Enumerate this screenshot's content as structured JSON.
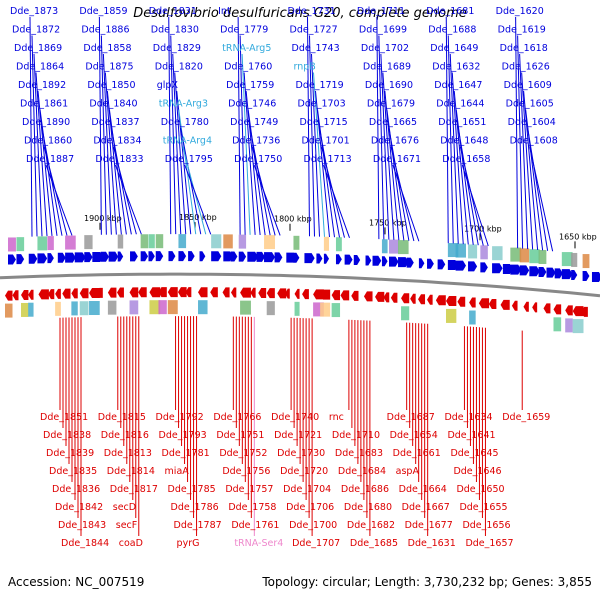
{
  "title": "Desulfovibrio desulfuricans G20, complete genome",
  "accession": "Accession: NC_007519",
  "summary": "Topology: circular; Length: 3,730,232 bp; Genes: 3,855",
  "colors": {
    "forward": "#0000dd",
    "reverse": "#dd0000",
    "rna": "#33aadd",
    "trna_reverse": "#ee88cc",
    "backbone": "#888888",
    "ticks": "#228822"
  },
  "ticks": [
    "1900 kbp",
    "1850 kbp",
    "1800 kbp",
    "1750 kbp",
    "1700 kbp",
    "1650 kbp"
  ],
  "forward_labels": [
    "Dde_1873",
    "Dde_1872",
    "Dde_1869",
    "Dde_1864",
    "Dde_1892",
    "Dde_1861",
    "Dde_1890",
    "Dde_1860",
    "Dde_1887",
    "Dde_1859",
    "Dde_1886",
    "Dde_1858",
    "Dde_1875",
    "Dde_1850",
    "Dde_1840",
    "Dde_1837",
    "Dde_1834",
    "Dde_1833",
    "Dde_1831",
    "Dde_1830",
    "Dde_1829",
    "Dde_1820",
    "glpX",
    "tRNA-Arg3",
    "Dde_1780",
    "tRNA-Arg4",
    "Dde_1795",
    "Int",
    "Dde_1779",
    "tRNA-Arg5",
    "Dde_1760",
    "Dde_1759",
    "Dde_1746",
    "Dde_1749",
    "Dde_1736",
    "Dde_1750",
    "Dde_1731",
    "Dde_1727",
    "Dde_1743",
    "rnpB",
    "Dde_1719",
    "Dde_1703",
    "Dde_1715",
    "Dde_1701",
    "Dde_1713",
    "Dde_1711",
    "Dde_1699",
    "Dde_1702",
    "Dde_1689",
    "Dde_1690",
    "Dde_1679",
    "Dde_1665",
    "Dde_1676",
    "Dde_1671",
    "Dde_1681",
    "Dde_1688",
    "Dde_1649",
    "Dde_1632",
    "Dde_1647",
    "Dde_1644",
    "Dde_1651",
    "Dde_1648",
    "Dde_1658",
    "Dde_1620",
    "Dde_1619",
    "Dde_1618",
    "Dde_1626",
    "Dde_1609",
    "Dde_1605",
    "Dde_1604",
    "Dde_1608"
  ],
  "reverse_labels": [
    "Dde_1851",
    "Dde_1838",
    "Dde_1839",
    "Dde_1835",
    "Dde_1836",
    "Dde_1842",
    "Dde_1843",
    "Dde_1844",
    "Dde_1815",
    "Dde_1816",
    "Dde_1813",
    "Dde_1814",
    "Dde_1817",
    "secD",
    "secF",
    "coaD",
    "Dde_1792",
    "Dde_1793",
    "Dde_1781",
    "miaA",
    "Dde_1785",
    "Dde_1786",
    "Dde_1787",
    "pyrG",
    "Dde_1766",
    "Dde_1751",
    "Dde_1752",
    "Dde_1756",
    "Dde_1757",
    "Dde_1758",
    "Dde_1761",
    "tRNA-Ser4",
    "Dde_1740",
    "Dde_1721",
    "Dde_1730",
    "Dde_1720",
    "Dde_1704",
    "Dde_1706",
    "Dde_1700",
    "Dde_1707",
    "rnc",
    "Dde_1710",
    "Dde_1683",
    "Dde_1684",
    "Dde_1686",
    "Dde_1680",
    "Dde_1682",
    "Dde_1685",
    "Dde_1687",
    "Dde_1654",
    "Dde_1661",
    "aspA",
    "Dde_1664",
    "Dde_1667",
    "Dde_1677",
    "Dde_1631",
    "Dde_1634",
    "Dde_1641",
    "Dde_1645",
    "Dde_1646",
    "Dde_1650",
    "Dde_1655",
    "Dde_1656",
    "Dde_1657",
    "Dde_1659"
  ]
}
